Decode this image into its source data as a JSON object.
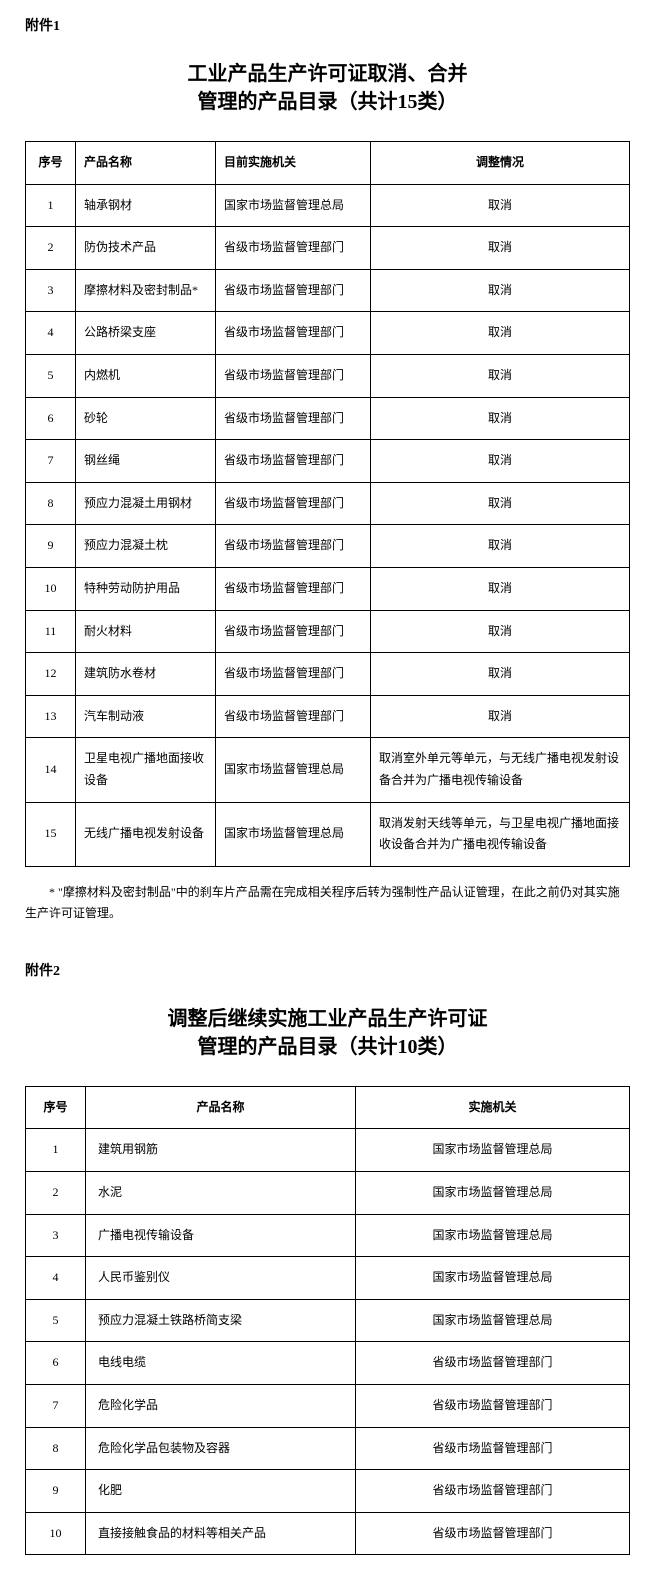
{
  "attachment1": {
    "label": "附件1",
    "title_line1": "工业产品生产许可证取消、合并",
    "title_line2": "管理的产品目录（共计15类）",
    "headers": {
      "seq": "序号",
      "name": "产品名称",
      "agency": "目前实施机关",
      "adjustment": "调整情况"
    },
    "rows": [
      {
        "seq": "1",
        "name": "轴承钢材",
        "agency": "国家市场监督管理总局",
        "adjustment": "取消",
        "align": "center"
      },
      {
        "seq": "2",
        "name": "防伪技术产品",
        "agency": "省级市场监督管理部门",
        "adjustment": "取消",
        "align": "center"
      },
      {
        "seq": "3",
        "name": "摩擦材料及密封制品*",
        "agency": "省级市场监督管理部门",
        "adjustment": "取消",
        "align": "center"
      },
      {
        "seq": "4",
        "name": "公路桥梁支座",
        "agency": "省级市场监督管理部门",
        "adjustment": "取消",
        "align": "center"
      },
      {
        "seq": "5",
        "name": "内燃机",
        "agency": "省级市场监督管理部门",
        "adjustment": "取消",
        "align": "center"
      },
      {
        "seq": "6",
        "name": "砂轮",
        "agency": "省级市场监督管理部门",
        "adjustment": "取消",
        "align": "center"
      },
      {
        "seq": "7",
        "name": "钢丝绳",
        "agency": "省级市场监督管理部门",
        "adjustment": "取消",
        "align": "center"
      },
      {
        "seq": "8",
        "name": "预应力混凝土用钢材",
        "agency": "省级市场监督管理部门",
        "adjustment": "取消",
        "align": "center"
      },
      {
        "seq": "9",
        "name": "预应力混凝土枕",
        "agency": "省级市场监督管理部门",
        "adjustment": "取消",
        "align": "center"
      },
      {
        "seq": "10",
        "name": "特种劳动防护用品",
        "agency": "省级市场监督管理部门",
        "adjustment": "取消",
        "align": "center"
      },
      {
        "seq": "11",
        "name": "耐火材料",
        "agency": "省级市场监督管理部门",
        "adjustment": "取消",
        "align": "center"
      },
      {
        "seq": "12",
        "name": "建筑防水卷材",
        "agency": "省级市场监督管理部门",
        "adjustment": "取消",
        "align": "center"
      },
      {
        "seq": "13",
        "name": "汽车制动液",
        "agency": "省级市场监督管理部门",
        "adjustment": "取消",
        "align": "center"
      },
      {
        "seq": "14",
        "name": "卫星电视广播地面接收设备",
        "agency": "国家市场监督管理总局",
        "adjustment": "取消室外单元等单元，与无线广播电视发射设备合并为广播电视传输设备",
        "align": "left"
      },
      {
        "seq": "15",
        "name": "无线广播电视发射设备",
        "agency": "国家市场监督管理总局",
        "adjustment": "取消发射天线等单元，与卫星电视广播地面接收设备合并为广播电视传输设备",
        "align": "left"
      }
    ],
    "footnote": "* \"摩擦材料及密封制品\"中的刹车片产品需在完成相关程序后转为强制性产品认证管理，在此之前仍对其实施生产许可证管理。"
  },
  "attachment2": {
    "label": "附件2",
    "title_line1": "调整后继续实施工业产品生产许可证",
    "title_line2": "管理的产品目录（共计10类）",
    "headers": {
      "seq": "序号",
      "name": "产品名称",
      "agency": "实施机关"
    },
    "rows": [
      {
        "seq": "1",
        "name": "建筑用钢筋",
        "agency": "国家市场监督管理总局"
      },
      {
        "seq": "2",
        "name": "水泥",
        "agency": "国家市场监督管理总局"
      },
      {
        "seq": "3",
        "name": "广播电视传输设备",
        "agency": "国家市场监督管理总局"
      },
      {
        "seq": "4",
        "name": "人民币鉴别仪",
        "agency": "国家市场监督管理总局"
      },
      {
        "seq": "5",
        "name": "预应力混凝土铁路桥简支梁",
        "agency": "国家市场监督管理总局"
      },
      {
        "seq": "6",
        "name": "电线电缆",
        "agency": "省级市场监督管理部门"
      },
      {
        "seq": "7",
        "name": "危险化学品",
        "agency": "省级市场监督管理部门"
      },
      {
        "seq": "8",
        "name": "危险化学品包装物及容器",
        "agency": "省级市场监督管理部门"
      },
      {
        "seq": "9",
        "name": "化肥",
        "agency": "省级市场监督管理部门"
      },
      {
        "seq": "10",
        "name": "直接接触食品的材料等相关产品",
        "agency": "省级市场监督管理部门"
      }
    ]
  }
}
